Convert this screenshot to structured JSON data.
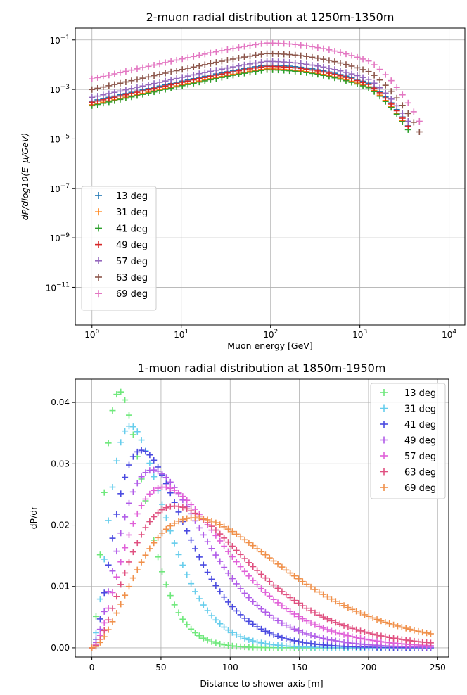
{
  "chart_data": [
    {
      "type": "scatter",
      "title": "2-muon radial distribution at 1250m-1350m",
      "xlabel": "Muon energy [GeV]",
      "ylabel": "dP/dlog10(E_μ/GeV)",
      "xscale": "log",
      "yscale": "log",
      "xlim": [
        0.65,
        15000
      ],
      "ylim": [
        3e-13,
        0.3
      ],
      "xticks": [
        {
          "value": 1,
          "base": "10",
          "exp": "0"
        },
        {
          "value": 10,
          "base": "10",
          "exp": "1"
        },
        {
          "value": 100,
          "base": "10",
          "exp": "2"
        },
        {
          "value": 1000,
          "base": "10",
          "exp": "3"
        },
        {
          "value": 10000,
          "base": "10",
          "exp": "4"
        }
      ],
      "yticks": [
        {
          "value": 1e-11,
          "base": "10",
          "exp": "−11"
        },
        {
          "value": 1e-09,
          "base": "10",
          "exp": "−9"
        },
        {
          "value": 1e-07,
          "base": "10",
          "exp": "−7"
        },
        {
          "value": 1e-05,
          "base": "10",
          "exp": "−5"
        },
        {
          "value": 0.001,
          "base": "10",
          "exp": "−3"
        },
        {
          "value": 0.1,
          "base": "10",
          "exp": "−1"
        }
      ],
      "grid": true,
      "legend_position": "lower-left",
      "marker": "+",
      "model": {
        "log10_x_start": 0,
        "log10_x_end": 3.73,
        "points": 60,
        "low_end_slope": 0.77,
        "peak_log10_x": 1.95,
        "cutoff_log10_x": 3.25,
        "cutoff_shape": [
          0.1,
          0.95,
          3.2
        ]
      },
      "series": [
        {
          "name": "13 deg",
          "color": "#1f77b4",
          "peak_value": 0.0095,
          "end_x": 3500
        },
        {
          "name": "31 deg",
          "color": "#ff7f0e",
          "peak_value": 0.0068,
          "end_x": 3300
        },
        {
          "name": "41 deg",
          "color": "#2ca02c",
          "peak_value": 0.0062,
          "end_x": 3700
        },
        {
          "name": "49 deg",
          "color": "#d62728",
          "peak_value": 0.0085,
          "end_x": 3750
        },
        {
          "name": "57 deg",
          "color": "#9467bd",
          "peak_value": 0.0135,
          "end_x": 3900
        },
        {
          "name": "63 deg",
          "color": "#8c564b",
          "peak_value": 0.028,
          "end_x": 5300
        },
        {
          "name": "69 deg",
          "color": "#e377c2",
          "peak_value": 0.075,
          "end_x": 5200
        }
      ]
    },
    {
      "type": "scatter",
      "title": "1-muon radial distribution at 1850m-1950m",
      "xlabel": "Distance to shower axis [m]",
      "ylabel": "dP/dr",
      "xlim": [
        -12,
        258
      ],
      "ylim": [
        -0.0015,
        0.0438
      ],
      "xticks": [
        {
          "value": 0,
          "label": "0"
        },
        {
          "value": 50,
          "label": "50"
        },
        {
          "value": 100,
          "label": "100"
        },
        {
          "value": 150,
          "label": "150"
        },
        {
          "value": 200,
          "label": "200"
        },
        {
          "value": 250,
          "label": "250"
        }
      ],
      "yticks": [
        {
          "value": 0,
          "label": "0.00"
        },
        {
          "value": 0.01,
          "label": "0.01"
        },
        {
          "value": 0.02,
          "label": "0.02"
        },
        {
          "value": 0.03,
          "label": "0.03"
        },
        {
          "value": 0.04,
          "label": "0.04"
        }
      ],
      "grid": true,
      "legend_position": "upper-right",
      "marker": "+",
      "model": {
        "x_start": 0,
        "x_end": 245,
        "points": 83
      },
      "series": [
        {
          "name": "13 deg",
          "color": "#6ee87b",
          "peak_x": 20,
          "peak_y": 0.0418
        },
        {
          "name": "31 deg",
          "color": "#66cdec",
          "peak_x": 28,
          "peak_y": 0.0362
        },
        {
          "name": "41 deg",
          "color": "#4a4ae0",
          "peak_x": 36,
          "peak_y": 0.0322
        },
        {
          "name": "49 deg",
          "color": "#b05ce8",
          "peak_x": 44,
          "peak_y": 0.029
        },
        {
          "name": "57 deg",
          "color": "#e060d8",
          "peak_x": 52,
          "peak_y": 0.0262
        },
        {
          "name": "63 deg",
          "color": "#e05080",
          "peak_x": 60,
          "peak_y": 0.0231
        },
        {
          "name": "69 deg",
          "color": "#f0904a",
          "peak_x": 74,
          "peak_y": 0.0212
        }
      ]
    }
  ]
}
